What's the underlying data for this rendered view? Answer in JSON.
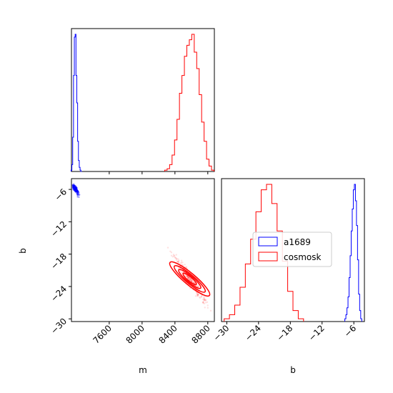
{
  "chart_data": {
    "type": "corner",
    "parameters": [
      "m",
      "b"
    ],
    "xlabel_m": "m",
    "xlabel_b": "b",
    "ylabel_b": "b",
    "series": [
      {
        "name": "a1689",
        "color": "#0000ff",
        "m_center": 7190,
        "b_center": -6.0,
        "m_hist": {
          "x": [
            7140,
            7150,
            7160,
            7170,
            7180,
            7190,
            7200,
            7210,
            7220,
            7230,
            7240,
            7250,
            7260
          ],
          "y": [
            0.01,
            0.05,
            0.25,
            0.7,
            0.98,
            1.0,
            0.7,
            0.5,
            0.22,
            0.08,
            0.03,
            0.01,
            0.0
          ]
        },
        "b_hist": {
          "x": [
            -7.6,
            -7.4,
            -7.2,
            -7.0,
            -6.8,
            -6.6,
            -6.4,
            -6.2,
            -6.0,
            -5.8,
            -5.6,
            -5.4,
            -5.2,
            -5.0,
            -4.8,
            -4.6
          ],
          "y": [
            0.02,
            0.05,
            0.1,
            0.18,
            0.32,
            0.48,
            0.66,
            0.82,
            0.96,
            1.0,
            0.88,
            0.7,
            0.45,
            0.2,
            0.08,
            0.02
          ]
        }
      },
      {
        "name": "cosmosk",
        "color": "#ff0000",
        "m_center": 8580,
        "b_center": -22.6,
        "m_hist": {
          "x": [
            8290,
            8320,
            8350,
            8380,
            8410,
            8440,
            8470,
            8500,
            8530,
            8560,
            8590,
            8620,
            8650,
            8680,
            8710,
            8740,
            8770,
            8800,
            8830,
            8860
          ],
          "y": [
            0.01,
            0.02,
            0.05,
            0.12,
            0.23,
            0.38,
            0.57,
            0.7,
            0.84,
            0.92,
            0.96,
            1.0,
            0.87,
            0.75,
            0.56,
            0.36,
            0.22,
            0.09,
            0.04,
            0.01
          ]
        },
        "b_hist": {
          "x": [
            -30.0,
            -29.0,
            -28.0,
            -27.0,
            -26.0,
            -25.0,
            -24.0,
            -23.0,
            -22.0,
            -21.0,
            -20.0,
            -19.0,
            -18.0,
            -17.0,
            -16.0
          ],
          "y": [
            0.02,
            0.05,
            0.12,
            0.25,
            0.42,
            0.6,
            0.8,
            0.96,
            1.0,
            0.86,
            0.66,
            0.44,
            0.22,
            0.08,
            0.02
          ]
        }
      }
    ],
    "m_ticks": [
      7600,
      8000,
      8400,
      8800
    ],
    "m_tick_labels": [
      "7600",
      "8000",
      "8400",
      "8800"
    ],
    "b_ticks": [
      -6,
      -12,
      -18,
      -24,
      -30
    ],
    "b_tick_labels": [
      "−6",
      "−12",
      "−18",
      "−24",
      "−30"
    ],
    "b_hist_ticks": [
      -30,
      -24,
      -18,
      -12,
      -6
    ],
    "b_hist_tick_labels": [
      "−30",
      "−24",
      "−18",
      "−12",
      "−6"
    ],
    "m_range": [
      7140,
      8880
    ],
    "b_range": [
      -30.5,
      -4.0
    ],
    "b_hist_range": [
      -31,
      -4.0
    ],
    "legend": {
      "position": "center",
      "entries": [
        "a1689",
        "cosmosk"
      ]
    }
  }
}
